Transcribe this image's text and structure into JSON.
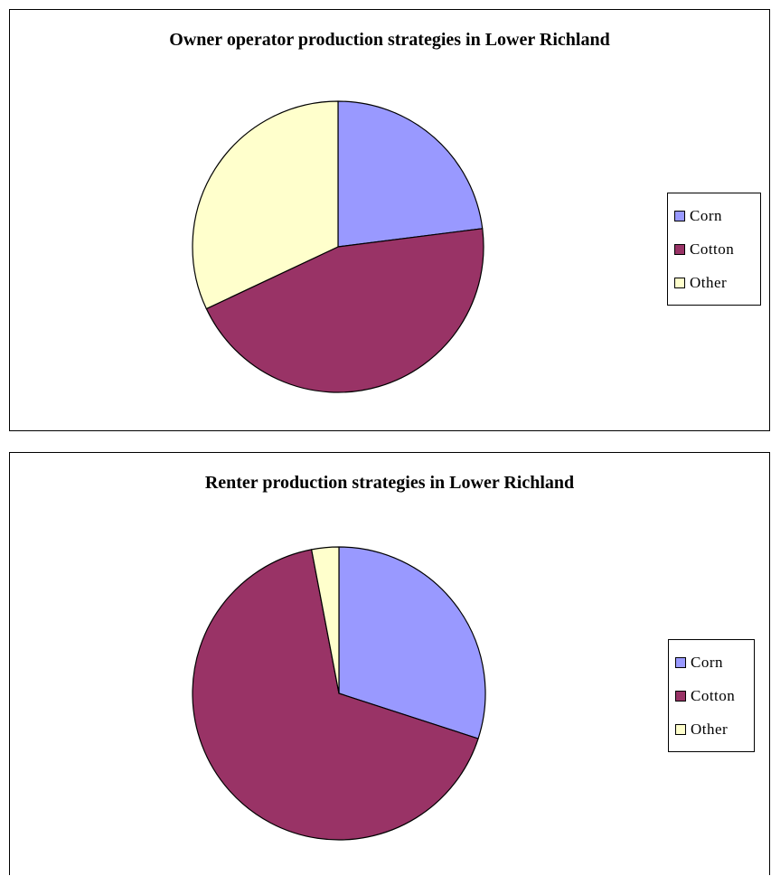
{
  "chart_data": [
    {
      "type": "pie",
      "title": "Owner operator production strategies in Lower Richland",
      "categories": [
        "Corn",
        "Cotton",
        "Other"
      ],
      "values": [
        23,
        45,
        32
      ],
      "colors": [
        "#9999ff",
        "#993366",
        "#ffffcc"
      ],
      "start_angle_deg": 0,
      "direction": "clockwise",
      "legend_position": "right"
    },
    {
      "type": "pie",
      "title": "Renter production strategies in Lower Richland",
      "categories": [
        "Corn",
        "Cotton",
        "Other"
      ],
      "values": [
        30,
        67,
        3
      ],
      "colors": [
        "#9999ff",
        "#993366",
        "#ffffcc"
      ],
      "start_angle_deg": 0,
      "direction": "clockwise",
      "legend_position": "right"
    }
  ]
}
